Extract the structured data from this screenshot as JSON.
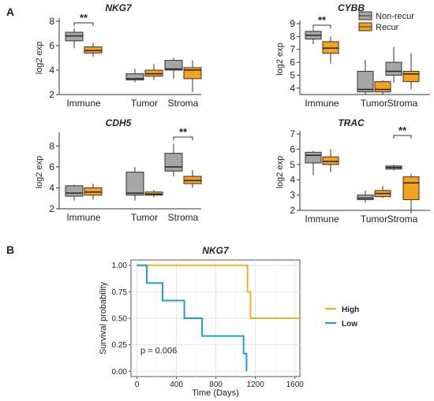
{
  "panel_labels": {
    "a": "A",
    "b": "B"
  },
  "colors": {
    "nonrecur": "#a6a6a6",
    "recur": "#f6a21b",
    "high": "#e8b623",
    "low": "#19a1d1"
  },
  "legend": {
    "items": [
      "Non-recur",
      "Recur"
    ]
  },
  "chart_data": [
    {
      "type": "box",
      "title": "NKG7",
      "ylabel": "log2 exp",
      "categories": [
        "Immune",
        "Tumor",
        "Stroma"
      ],
      "ylim": [
        2,
        8
      ],
      "ticks": [
        "2",
        "4",
        "6",
        "8"
      ],
      "tick_values": [
        2,
        4,
        6,
        8
      ],
      "series": [
        {
          "name": "Non-recur",
          "boxes": [
            [
              5.8,
              6.4,
              6.8,
              7.1,
              7.4
            ],
            [
              3.0,
              3.2,
              3.3,
              3.7,
              4.1
            ],
            [
              3.3,
              4.0,
              4.1,
              4.8,
              5.0
            ]
          ]
        },
        {
          "name": "Recur",
          "boxes": [
            [
              5.1,
              5.4,
              5.6,
              5.9,
              6.2
            ],
            [
              3.2,
              3.5,
              3.7,
              4.0,
              4.5
            ],
            [
              2.2,
              3.3,
              4.0,
              4.2,
              4.8
            ]
          ]
        }
      ],
      "significance": [
        {
          "category": "Immune",
          "label": "**"
        }
      ]
    },
    {
      "type": "box",
      "title": "CYBB",
      "ylabel": "log2 exp",
      "categories": [
        "Immune",
        "Tumor",
        "Stroma"
      ],
      "ylim": [
        3.5,
        9
      ],
      "ticks": [
        "4",
        "5",
        "6",
        "7",
        "8",
        "9"
      ],
      "tick_values": [
        4,
        5,
        6,
        7,
        8,
        9
      ],
      "series": [
        {
          "name": "Non-recur",
          "boxes": [
            [
              7.4,
              7.8,
              8.1,
              8.4,
              8.6
            ],
            [
              3.5,
              3.7,
              3.9,
              5.3,
              6.2
            ],
            [
              4.4,
              5.0,
              5.3,
              6.0,
              7.2
            ]
          ]
        },
        {
          "name": "Recur",
          "boxes": [
            [
              5.9,
              6.7,
              7.1,
              7.6,
              8.0
            ],
            [
              3.5,
              3.7,
              3.9,
              4.5,
              4.6
            ],
            [
              3.9,
              4.5,
              5.1,
              5.3,
              6.7
            ]
          ]
        }
      ],
      "significance": [
        {
          "category": "Immune",
          "label": "**"
        }
      ]
    },
    {
      "type": "box",
      "title": "CDH5",
      "ylabel": "log2 exp",
      "categories": [
        "Immune",
        "Tumor",
        "Stroma"
      ],
      "ylim": [
        2,
        9
      ],
      "ticks": [
        "2",
        "4",
        "6",
        "8"
      ],
      "tick_values": [
        2,
        4,
        6,
        8
      ],
      "series": [
        {
          "name": "Non-recur",
          "boxes": [
            [
              2.8,
              3.2,
              3.5,
              4.2,
              4.3
            ],
            [
              2.8,
              3.3,
              3.5,
              5.5,
              6.0
            ],
            [
              5.1,
              5.6,
              6.0,
              7.3,
              8.2
            ]
          ]
        },
        {
          "name": "Recur",
          "boxes": [
            [
              2.9,
              3.3,
              3.6,
              4.0,
              4.4
            ],
            [
              3.1,
              3.3,
              3.4,
              3.6,
              3.8
            ],
            [
              4.0,
              4.4,
              4.7,
              5.1,
              5.7
            ]
          ]
        }
      ],
      "significance": [
        {
          "category": "Stroma",
          "label": "**"
        }
      ]
    },
    {
      "type": "box",
      "title": "TRAC",
      "ylabel": "log2 exp",
      "categories": [
        "Immune",
        "Tumor",
        "Stroma"
      ],
      "ylim": [
        2,
        7
      ],
      "ticks": [
        "2",
        "3",
        "4",
        "5",
        "6",
        "7"
      ],
      "tick_values": [
        2,
        3,
        4,
        5,
        6,
        7
      ],
      "series": [
        {
          "name": "Non-recur",
          "boxes": [
            [
              4.3,
              5.1,
              5.6,
              5.8,
              5.9
            ],
            [
              2.5,
              2.7,
              2.8,
              3.0,
              3.3
            ],
            [
              4.6,
              4.7,
              4.8,
              4.9,
              5.0
            ]
          ]
        },
        {
          "name": "Recur",
          "boxes": [
            [
              4.5,
              5.0,
              5.2,
              5.5,
              6.0
            ],
            [
              2.8,
              2.9,
              3.1,
              3.3,
              3.6
            ],
            [
              1.8,
              2.7,
              3.8,
              4.2,
              4.4
            ]
          ]
        }
      ],
      "significance": [
        {
          "category": "Stroma",
          "label": "**"
        }
      ]
    },
    {
      "type": "line",
      "title": "NKG7",
      "xlabel": "Time (Days)",
      "ylabel": "Survival probability",
      "xlim": [
        -60,
        1650
      ],
      "ylim": [
        -0.05,
        1.05
      ],
      "xticks": [
        "0",
        "400",
        "800",
        "1200",
        "1600"
      ],
      "xtick_values": [
        0,
        400,
        800,
        1200,
        1600
      ],
      "yticks": [
        "0.00",
        "0.25",
        "0.50",
        "0.75",
        "1.00"
      ],
      "ytick_values": [
        0,
        0.25,
        0.5,
        0.75,
        1
      ],
      "annotation": "p = 0.006",
      "series": [
        {
          "name": "High",
          "steps": [
            [
              0,
              1.0
            ],
            [
              1120,
              0.75
            ],
            [
              1150,
              0.5
            ],
            [
              1650,
              0.5
            ]
          ]
        },
        {
          "name": "Low",
          "steps": [
            [
              0,
              1.0
            ],
            [
              100,
              0.833
            ],
            [
              260,
              0.667
            ],
            [
              480,
              0.5
            ],
            [
              660,
              0.333
            ],
            [
              1080,
              0.167
            ],
            [
              1110,
              0.0
            ]
          ]
        }
      ]
    }
  ]
}
